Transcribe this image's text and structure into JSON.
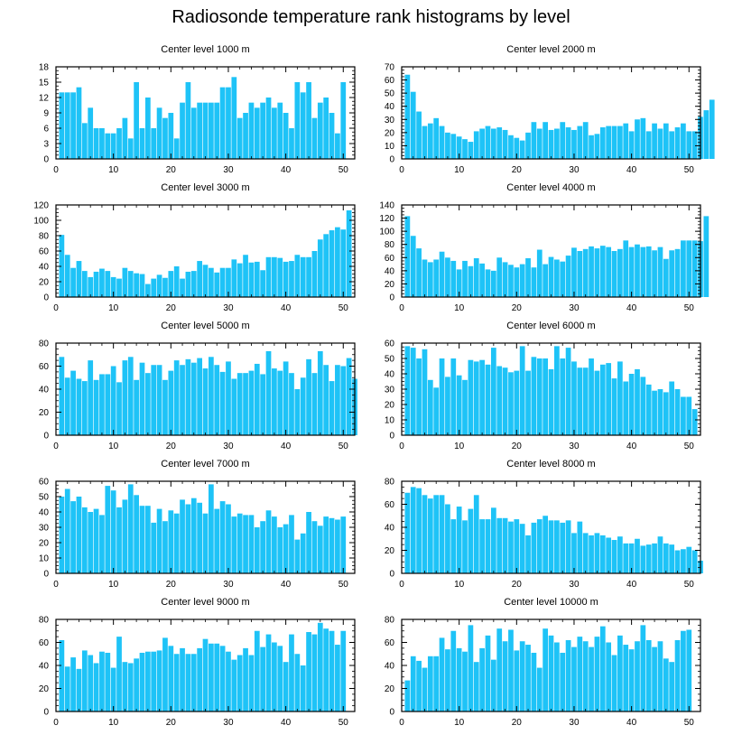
{
  "figure": {
    "title": "Radiosonde temperature rank histograms by level",
    "bar_color": "#1ec3f7"
  },
  "chart_data": [
    {
      "type": "bar",
      "title": "Center level 1000 m",
      "xlim": [
        0,
        52
      ],
      "ylim": [
        0,
        18
      ],
      "xticks": [
        0,
        10,
        20,
        30,
        40,
        50
      ],
      "yticks": [
        0,
        3,
        6,
        9,
        12,
        15,
        18
      ],
      "values": [
        13,
        13,
        13,
        14,
        7,
        10,
        6,
        6,
        5,
        5,
        6,
        8,
        4,
        15,
        6,
        12,
        6,
        10,
        8,
        9,
        4,
        11,
        15,
        10,
        11,
        11,
        11,
        11,
        14,
        14,
        16,
        8,
        9,
        11,
        10,
        11,
        12,
        10,
        11,
        9,
        6,
        15,
        13,
        15,
        8,
        11,
        12,
        9,
        5,
        15
      ]
    },
    {
      "type": "bar",
      "title": "Center level 2000 m",
      "xlim": [
        0,
        52
      ],
      "ylim": [
        0,
        70
      ],
      "xticks": [
        0,
        10,
        20,
        30,
        40,
        50
      ],
      "yticks": [
        0,
        10,
        20,
        30,
        40,
        50,
        60,
        70
      ],
      "values": [
        64,
        51,
        36,
        25,
        27,
        31,
        25,
        20,
        19,
        17,
        15,
        13,
        21,
        23,
        25,
        23,
        24,
        22,
        18,
        16,
        14,
        20,
        28,
        23,
        28,
        22,
        23,
        28,
        24,
        22,
        25,
        28,
        18,
        19,
        24,
        25,
        25,
        25,
        27,
        21,
        30,
        31,
        21,
        27,
        23,
        27,
        21,
        24,
        27,
        21,
        21,
        32,
        37,
        45
      ]
    },
    {
      "type": "bar",
      "title": "Center level 3000 m",
      "xlim": [
        0,
        52
      ],
      "ylim": [
        0,
        120
      ],
      "xticks": [
        0,
        10,
        20,
        30,
        40,
        50
      ],
      "yticks": [
        0,
        20,
        40,
        60,
        80,
        100,
        120
      ],
      "values": [
        81,
        55,
        38,
        47,
        34,
        26,
        33,
        37,
        34,
        26,
        24,
        38,
        34,
        31,
        30,
        17,
        24,
        29,
        25,
        34,
        40,
        24,
        33,
        34,
        47,
        42,
        38,
        32,
        38,
        38,
        49,
        44,
        55,
        45,
        46,
        35,
        52,
        52,
        51,
        46,
        47,
        55,
        52,
        52,
        60,
        75,
        82,
        87,
        91,
        88,
        113
      ]
    },
    {
      "type": "bar",
      "title": "Center level 4000 m",
      "xlim": [
        0,
        52
      ],
      "ylim": [
        0,
        140
      ],
      "xticks": [
        0,
        10,
        20,
        30,
        40,
        50
      ],
      "yticks": [
        0,
        20,
        40,
        60,
        80,
        100,
        120,
        140
      ],
      "values": [
        123,
        93,
        74,
        57,
        53,
        57,
        69,
        60,
        55,
        42,
        55,
        47,
        59,
        51,
        42,
        40,
        60,
        53,
        49,
        45,
        50,
        59,
        45,
        72,
        50,
        61,
        57,
        54,
        63,
        75,
        70,
        73,
        77,
        74,
        78,
        76,
        70,
        73,
        86,
        76,
        80,
        76,
        77,
        71,
        76,
        58,
        71,
        73,
        86,
        86,
        86,
        85,
        123
      ]
    },
    {
      "type": "bar",
      "title": "Center level 5000 m",
      "xlim": [
        0,
        52
      ],
      "ylim": [
        0,
        80
      ],
      "xticks": [
        0,
        10,
        20,
        30,
        40,
        50
      ],
      "yticks": [
        0,
        20,
        40,
        60,
        80
      ],
      "values": [
        68,
        50,
        56,
        49,
        47,
        65,
        48,
        53,
        53,
        60,
        46,
        65,
        68,
        48,
        63,
        54,
        61,
        61,
        48,
        56,
        65,
        61,
        66,
        63,
        67,
        58,
        68,
        61,
        55,
        64,
        49,
        54,
        54,
        56,
        62,
        53,
        73,
        58,
        56,
        64,
        54,
        40,
        50,
        66,
        54,
        73,
        61,
        47,
        61,
        60,
        67,
        49
      ]
    },
    {
      "type": "bar",
      "title": "Center level 6000 m",
      "xlim": [
        0,
        52
      ],
      "ylim": [
        0,
        60
      ],
      "xticks": [
        0,
        10,
        20,
        30,
        40,
        50
      ],
      "yticks": [
        0,
        10,
        20,
        30,
        40,
        50,
        60
      ],
      "values": [
        58,
        57,
        50,
        56,
        36,
        31,
        50,
        38,
        50,
        39,
        36,
        49,
        48,
        49,
        46,
        57,
        45,
        44,
        41,
        42,
        58,
        42,
        51,
        50,
        50,
        43,
        58,
        50,
        57,
        48,
        44,
        44,
        50,
        42,
        46,
        47,
        37,
        48,
        35,
        40,
        43,
        38,
        33,
        29,
        30,
        28,
        35,
        30,
        25,
        25,
        17
      ]
    },
    {
      "type": "bar",
      "title": "Center level 7000 m",
      "xlim": [
        0,
        52
      ],
      "ylim": [
        0,
        60
      ],
      "xticks": [
        0,
        10,
        20,
        30,
        40,
        50
      ],
      "yticks": [
        0,
        10,
        20,
        30,
        40,
        50,
        60
      ],
      "values": [
        50,
        55,
        47,
        50,
        43,
        40,
        42,
        38,
        57,
        54,
        43,
        48,
        58,
        51,
        44,
        44,
        33,
        42,
        34,
        41,
        39,
        48,
        45,
        49,
        46,
        39,
        58,
        42,
        47,
        45,
        37,
        39,
        38,
        38,
        30,
        34,
        41,
        37,
        30,
        32,
        38,
        22,
        26,
        40,
        34,
        31,
        37,
        36,
        35,
        37
      ]
    },
    {
      "type": "bar",
      "title": "Center level 8000 m",
      "xlim": [
        0,
        52
      ],
      "ylim": [
        0,
        80
      ],
      "xticks": [
        0,
        10,
        20,
        30,
        40,
        50
      ],
      "yticks": [
        0,
        20,
        40,
        60,
        80
      ],
      "values": [
        70,
        75,
        74,
        68,
        65,
        68,
        68,
        60,
        47,
        58,
        46,
        56,
        68,
        47,
        47,
        57,
        48,
        48,
        45,
        47,
        43,
        33,
        44,
        47,
        50,
        46,
        46,
        44,
        46,
        35,
        45,
        35,
        33,
        35,
        33,
        31,
        29,
        32,
        26,
        26,
        30,
        24,
        25,
        26,
        32,
        26,
        25,
        20,
        21,
        23,
        20,
        11
      ]
    },
    {
      "type": "bar",
      "title": "Center level 9000 m",
      "xlim": [
        0,
        52
      ],
      "ylim": [
        0,
        80
      ],
      "xticks": [
        0,
        10,
        20,
        30,
        40,
        50
      ],
      "yticks": [
        0,
        20,
        40,
        60,
        80
      ],
      "values": [
        62,
        39,
        47,
        37,
        53,
        49,
        42,
        52,
        51,
        38,
        65,
        43,
        42,
        46,
        51,
        52,
        52,
        53,
        64,
        57,
        50,
        55,
        50,
        50,
        55,
        63,
        59,
        59,
        57,
        52,
        45,
        49,
        55,
        49,
        70,
        56,
        67,
        60,
        57,
        43,
        67,
        50,
        40,
        69,
        67,
        77,
        72,
        70,
        58,
        70
      ]
    },
    {
      "type": "bar",
      "title": "Center level 10000 m",
      "xlim": [
        0,
        52
      ],
      "ylim": [
        0,
        80
      ],
      "xticks": [
        0,
        10,
        20,
        30,
        40,
        50
      ],
      "yticks": [
        0,
        20,
        40,
        60,
        80
      ],
      "values": [
        27,
        48,
        44,
        38,
        48,
        48,
        64,
        54,
        70,
        55,
        52,
        75,
        43,
        55,
        66,
        45,
        72,
        61,
        71,
        53,
        61,
        58,
        51,
        38,
        72,
        66,
        60,
        51,
        62,
        56,
        65,
        61,
        56,
        65,
        74,
        60,
        49,
        66,
        58,
        54,
        61,
        75,
        62,
        56,
        61,
        46,
        43,
        62,
        70,
        71
      ]
    }
  ]
}
